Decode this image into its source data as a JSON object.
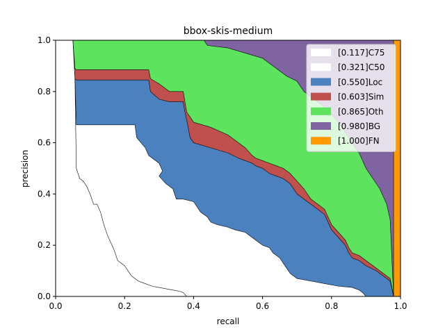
{
  "chart_data": {
    "type": "area",
    "title": "bbox-skis-medium",
    "xlabel": "recall",
    "ylabel": "precision",
    "xlim": [
      0.0,
      1.0
    ],
    "ylim": [
      0.0,
      1.0
    ],
    "xticks": [
      "0.0",
      "0.2",
      "0.4",
      "0.6",
      "0.8",
      "1.0"
    ],
    "yticks": [
      "0.0",
      "0.2",
      "0.4",
      "0.6",
      "0.8",
      "1.0"
    ],
    "grid": false,
    "legend_position": "top-right",
    "series": [
      {
        "name": "[0.117]C75",
        "color": "#ffffff",
        "points": [
          [
            0.05,
            1.0
          ],
          [
            0.056,
            0.85
          ],
          [
            0.06,
            0.5
          ],
          [
            0.065,
            0.48
          ],
          [
            0.07,
            0.46
          ],
          [
            0.08,
            0.45
          ],
          [
            0.09,
            0.43
          ],
          [
            0.1,
            0.4
          ],
          [
            0.11,
            0.36
          ],
          [
            0.12,
            0.36
          ],
          [
            0.13,
            0.33
          ],
          [
            0.14,
            0.28
          ],
          [
            0.15,
            0.24
          ],
          [
            0.16,
            0.21
          ],
          [
            0.17,
            0.18
          ],
          [
            0.18,
            0.14
          ],
          [
            0.19,
            0.13
          ],
          [
            0.2,
            0.12
          ],
          [
            0.22,
            0.08
          ],
          [
            0.24,
            0.06
          ],
          [
            0.26,
            0.05
          ],
          [
            0.28,
            0.04
          ],
          [
            0.3,
            0.035
          ],
          [
            0.32,
            0.03
          ],
          [
            0.34,
            0.025
          ],
          [
            0.36,
            0.02
          ],
          [
            0.37,
            0.015
          ],
          [
            0.38,
            0.0
          ]
        ]
      },
      {
        "name": "[0.321]C50",
        "color": "#ffffff",
        "points": [
          [
            0.05,
            1.0
          ],
          [
            0.056,
            0.85
          ],
          [
            0.06,
            0.67
          ],
          [
            0.14,
            0.67
          ],
          [
            0.16,
            0.67
          ],
          [
            0.2,
            0.67
          ],
          [
            0.23,
            0.67
          ],
          [
            0.235,
            0.62
          ],
          [
            0.26,
            0.58
          ],
          [
            0.27,
            0.55
          ],
          [
            0.3,
            0.52
          ],
          [
            0.31,
            0.49
          ],
          [
            0.3,
            0.47
          ],
          [
            0.32,
            0.44
          ],
          [
            0.34,
            0.42
          ],
          [
            0.35,
            0.38
          ],
          [
            0.37,
            0.38
          ],
          [
            0.4,
            0.37
          ],
          [
            0.42,
            0.33
          ],
          [
            0.44,
            0.31
          ],
          [
            0.45,
            0.29
          ],
          [
            0.47,
            0.28
          ],
          [
            0.5,
            0.27
          ],
          [
            0.52,
            0.26
          ],
          [
            0.55,
            0.25
          ],
          [
            0.57,
            0.23
          ],
          [
            0.6,
            0.2
          ],
          [
            0.62,
            0.19
          ],
          [
            0.63,
            0.17
          ],
          [
            0.65,
            0.15
          ],
          [
            0.66,
            0.13
          ],
          [
            0.67,
            0.11
          ],
          [
            0.68,
            0.09
          ],
          [
            0.7,
            0.07
          ],
          [
            0.74,
            0.06
          ],
          [
            0.78,
            0.05
          ],
          [
            0.82,
            0.04
          ],
          [
            0.86,
            0.035
          ],
          [
            0.88,
            0.025
          ],
          [
            0.89,
            0.015
          ],
          [
            0.9,
            0.0
          ]
        ]
      },
      {
        "name": "[0.550]Loc",
        "color": "#4c81bf",
        "points": [
          [
            0.05,
            1.0
          ],
          [
            0.056,
            0.85
          ],
          [
            0.06,
            0.845
          ],
          [
            0.27,
            0.845
          ],
          [
            0.275,
            0.8
          ],
          [
            0.3,
            0.77
          ],
          [
            0.33,
            0.76
          ],
          [
            0.37,
            0.76
          ],
          [
            0.375,
            0.72
          ],
          [
            0.38,
            0.69
          ],
          [
            0.39,
            0.62
          ],
          [
            0.4,
            0.6
          ],
          [
            0.45,
            0.58
          ],
          [
            0.5,
            0.56
          ],
          [
            0.53,
            0.54
          ],
          [
            0.55,
            0.53
          ],
          [
            0.57,
            0.52
          ],
          [
            0.58,
            0.51
          ],
          [
            0.6,
            0.5
          ],
          [
            0.61,
            0.49
          ],
          [
            0.62,
            0.48
          ],
          [
            0.64,
            0.47
          ],
          [
            0.66,
            0.46
          ],
          [
            0.68,
            0.44
          ],
          [
            0.7,
            0.4
          ],
          [
            0.72,
            0.38
          ],
          [
            0.74,
            0.36
          ],
          [
            0.76,
            0.34
          ],
          [
            0.78,
            0.32
          ],
          [
            0.8,
            0.26
          ],
          [
            0.82,
            0.23
          ],
          [
            0.84,
            0.2
          ],
          [
            0.85,
            0.17
          ],
          [
            0.86,
            0.15
          ],
          [
            0.88,
            0.14
          ],
          [
            0.9,
            0.12
          ],
          [
            0.93,
            0.1
          ],
          [
            0.95,
            0.08
          ],
          [
            0.97,
            0.06
          ],
          [
            0.98,
            0.0
          ]
        ]
      },
      {
        "name": "[0.603]Sim",
        "color": "#c0504d",
        "points": [
          [
            0.05,
            1.0
          ],
          [
            0.056,
            0.89
          ],
          [
            0.06,
            0.885
          ],
          [
            0.27,
            0.885
          ],
          [
            0.275,
            0.85
          ],
          [
            0.3,
            0.83
          ],
          [
            0.33,
            0.8
          ],
          [
            0.37,
            0.8
          ],
          [
            0.375,
            0.76
          ],
          [
            0.38,
            0.72
          ],
          [
            0.39,
            0.7
          ],
          [
            0.4,
            0.68
          ],
          [
            0.45,
            0.66
          ],
          [
            0.5,
            0.63
          ],
          [
            0.53,
            0.6
          ],
          [
            0.55,
            0.58
          ],
          [
            0.57,
            0.55
          ],
          [
            0.58,
            0.54
          ],
          [
            0.6,
            0.53
          ],
          [
            0.62,
            0.52
          ],
          [
            0.64,
            0.51
          ],
          [
            0.66,
            0.5
          ],
          [
            0.68,
            0.48
          ],
          [
            0.7,
            0.45
          ],
          [
            0.72,
            0.42
          ],
          [
            0.74,
            0.38
          ],
          [
            0.76,
            0.36
          ],
          [
            0.78,
            0.34
          ],
          [
            0.8,
            0.28
          ],
          [
            0.82,
            0.25
          ],
          [
            0.84,
            0.22
          ],
          [
            0.85,
            0.19
          ],
          [
            0.86,
            0.17
          ],
          [
            0.88,
            0.16
          ],
          [
            0.9,
            0.14
          ],
          [
            0.93,
            0.11
          ],
          [
            0.95,
            0.09
          ],
          [
            0.97,
            0.07
          ],
          [
            0.98,
            0.0
          ]
        ]
      },
      {
        "name": "[0.865]Oth",
        "color": "#5de35d",
        "points": [
          [
            0.05,
            1.0
          ],
          [
            0.43,
            1.0
          ],
          [
            0.44,
            0.98
          ],
          [
            0.5,
            0.97
          ],
          [
            0.55,
            0.95
          ],
          [
            0.6,
            0.93
          ],
          [
            0.63,
            0.9
          ],
          [
            0.65,
            0.88
          ],
          [
            0.67,
            0.86
          ],
          [
            0.7,
            0.84
          ],
          [
            0.72,
            0.8
          ],
          [
            0.75,
            0.77
          ],
          [
            0.78,
            0.74
          ],
          [
            0.8,
            0.71
          ],
          [
            0.82,
            0.68
          ],
          [
            0.84,
            0.64
          ],
          [
            0.86,
            0.6
          ],
          [
            0.88,
            0.56
          ],
          [
            0.9,
            0.5
          ],
          [
            0.92,
            0.46
          ],
          [
            0.94,
            0.42
          ],
          [
            0.96,
            0.36
          ],
          [
            0.97,
            0.3
          ],
          [
            0.98,
            0.0
          ]
        ]
      },
      {
        "name": "[0.980]BG",
        "color": "#8064a2",
        "points": [
          [
            0.05,
            1.0
          ],
          [
            0.98,
            1.0
          ],
          [
            0.98,
            0.0
          ]
        ]
      },
      {
        "name": "[1.000]FN",
        "color": "#ff9a00",
        "points": [
          [
            0.05,
            1.0
          ],
          [
            1.0,
            1.0
          ],
          [
            1.0,
            0.0
          ]
        ]
      }
    ]
  }
}
